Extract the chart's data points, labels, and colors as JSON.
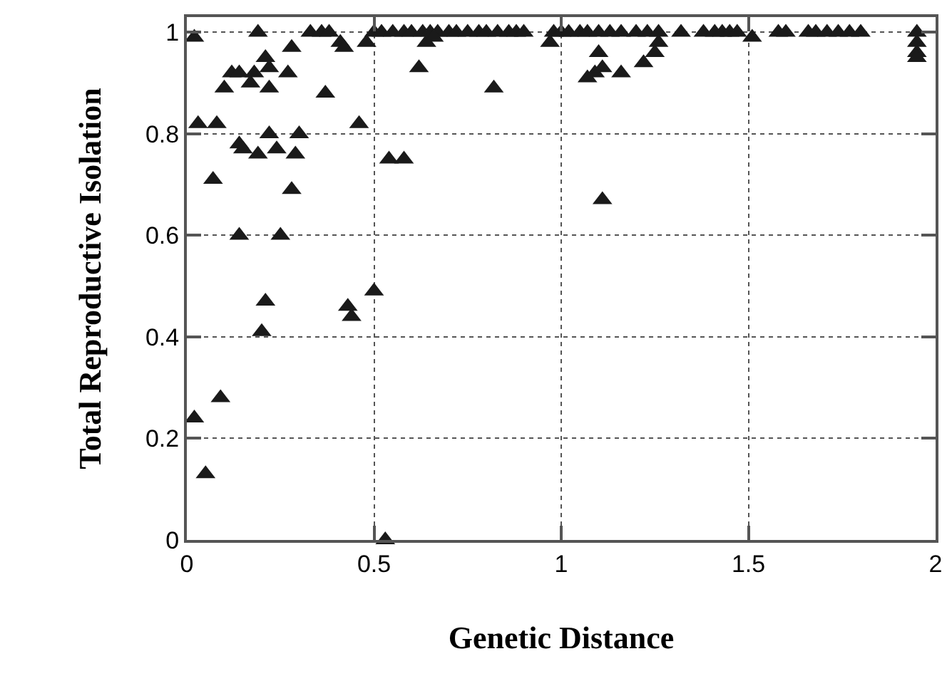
{
  "chart_data": {
    "type": "scatter",
    "xlabel": "Genetic Distance",
    "ylabel": "Total Reproductive Isolation",
    "xlim": [
      0,
      2
    ],
    "ylim": [
      0,
      1.03
    ],
    "xticks": [
      0,
      0.5,
      1,
      1.5,
      2
    ],
    "yticks": [
      0,
      0.2,
      0.4,
      0.6,
      0.8,
      1
    ],
    "grid": true,
    "marker": "triangle",
    "series": [
      {
        "color": "#1a1a1a",
        "x": [
          0.02,
          0.05,
          0.03,
          0.02,
          0.08,
          0.07,
          0.09,
          0.1,
          0.12,
          0.14,
          0.14,
          0.15,
          0.14,
          0.17,
          0.18,
          0.19,
          0.19,
          0.2,
          0.21,
          0.21,
          0.22,
          0.22,
          0.22,
          0.24,
          0.25,
          0.27,
          0.28,
          0.28,
          0.29,
          0.3,
          0.33,
          0.36,
          0.37,
          0.38,
          0.41,
          0.42,
          0.43,
          0.44,
          0.46,
          0.48,
          0.5,
          0.5,
          0.53,
          0.54,
          0.58,
          0.52,
          0.55,
          0.58,
          0.6,
          0.63,
          0.65,
          0.67,
          0.7,
          0.72,
          0.75,
          0.78,
          0.8,
          0.83,
          0.86,
          0.88,
          0.9,
          0.62,
          0.64,
          0.66,
          0.82,
          0.97,
          0.98,
          1.0,
          1.02,
          1.05,
          1.07,
          1.1,
          1.13,
          1.16,
          1.2,
          1.23,
          1.26,
          1.32,
          1.07,
          1.09,
          1.1,
          1.11,
          1.11,
          1.16,
          1.22,
          1.25,
          1.26,
          1.38,
          1.41,
          1.43,
          1.45,
          1.47,
          1.51,
          1.58,
          1.6,
          1.66,
          1.68,
          1.71,
          1.74,
          1.77,
          1.8,
          1.95,
          1.95,
          1.95,
          1.95
        ],
        "values": [
          0.24,
          0.13,
          0.82,
          0.99,
          0.82,
          0.71,
          0.28,
          0.89,
          0.92,
          0.92,
          0.78,
          0.77,
          0.6,
          0.9,
          0.92,
          1.0,
          0.76,
          0.41,
          0.47,
          0.95,
          0.93,
          0.8,
          0.89,
          0.77,
          0.6,
          0.92,
          0.97,
          0.69,
          0.76,
          0.8,
          1.0,
          1.0,
          0.88,
          1.0,
          0.98,
          0.97,
          0.46,
          0.44,
          0.82,
          0.98,
          0.49,
          1.0,
          0.0,
          0.75,
          0.75,
          1.0,
          1.0,
          1.0,
          1.0,
          1.0,
          1.0,
          1.0,
          1.0,
          1.0,
          1.0,
          1.0,
          1.0,
          1.0,
          1.0,
          1.0,
          1.0,
          0.93,
          0.98,
          0.99,
          0.89,
          0.98,
          1.0,
          1.0,
          1.0,
          1.0,
          1.0,
          1.0,
          1.0,
          1.0,
          1.0,
          1.0,
          1.0,
          1.0,
          0.91,
          0.92,
          0.96,
          0.93,
          0.67,
          0.92,
          0.94,
          0.96,
          0.98,
          1.0,
          1.0,
          1.0,
          1.0,
          1.0,
          0.99,
          1.0,
          1.0,
          1.0,
          1.0,
          1.0,
          1.0,
          1.0,
          1.0,
          1.0,
          0.98,
          0.96,
          0.95
        ]
      }
    ]
  }
}
